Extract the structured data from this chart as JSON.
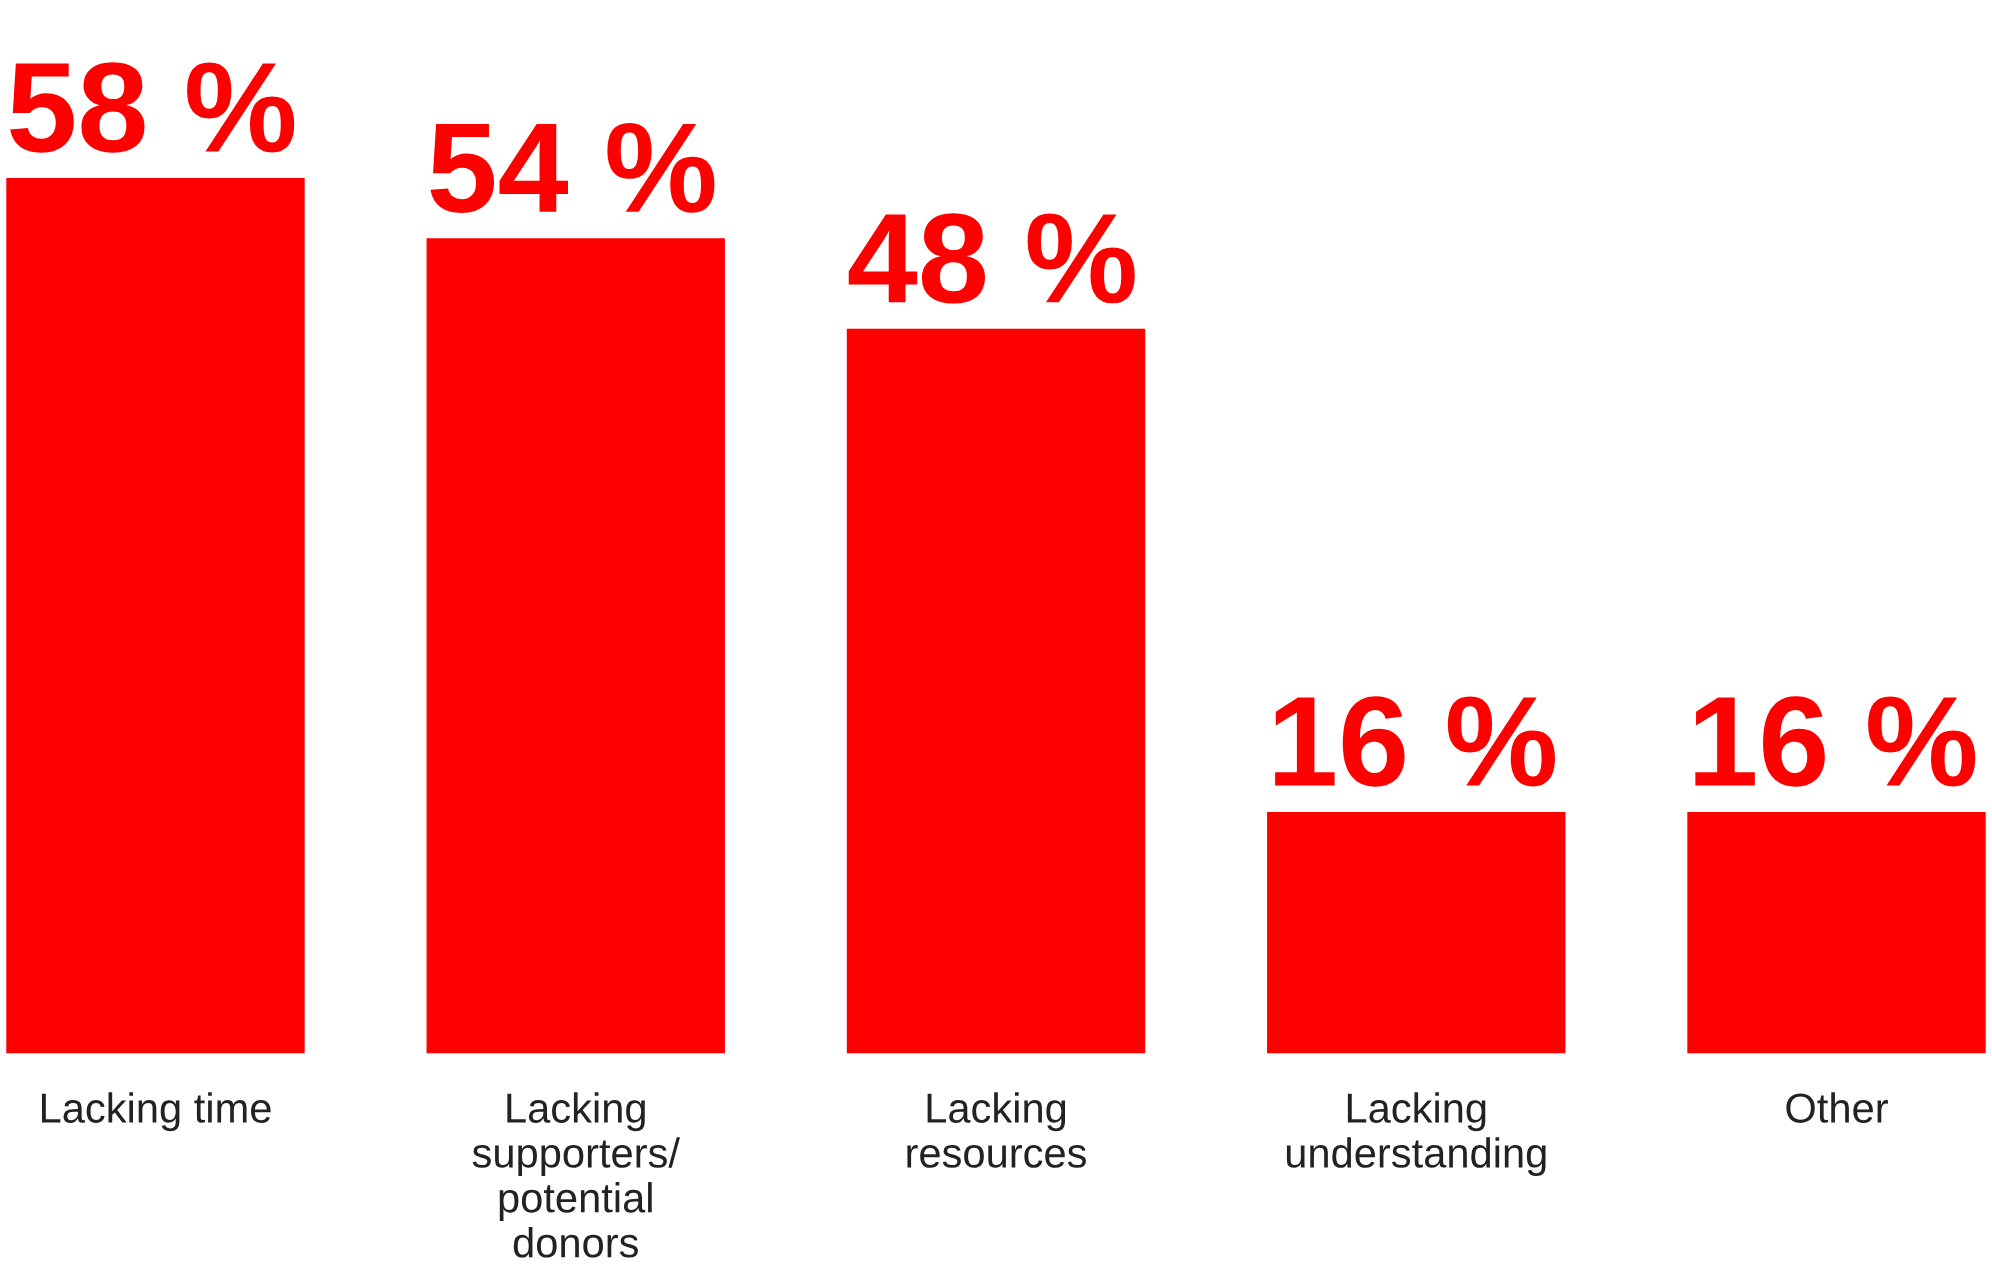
{
  "chart_data": {
    "type": "bar",
    "categories": [
      "Lacking time",
      "Lacking\nsupporters/\npotential\ndonors",
      "Lacking\nresources",
      "Lacking\nunderstanding",
      "Other"
    ],
    "values": [
      58,
      54,
      48,
      16,
      16
    ],
    "color": "#fe0000",
    "value_labels": [
      "58 %",
      "54 %",
      "48 %",
      "16 %",
      "16 %"
    ],
    "grid": false,
    "legend": false
  }
}
